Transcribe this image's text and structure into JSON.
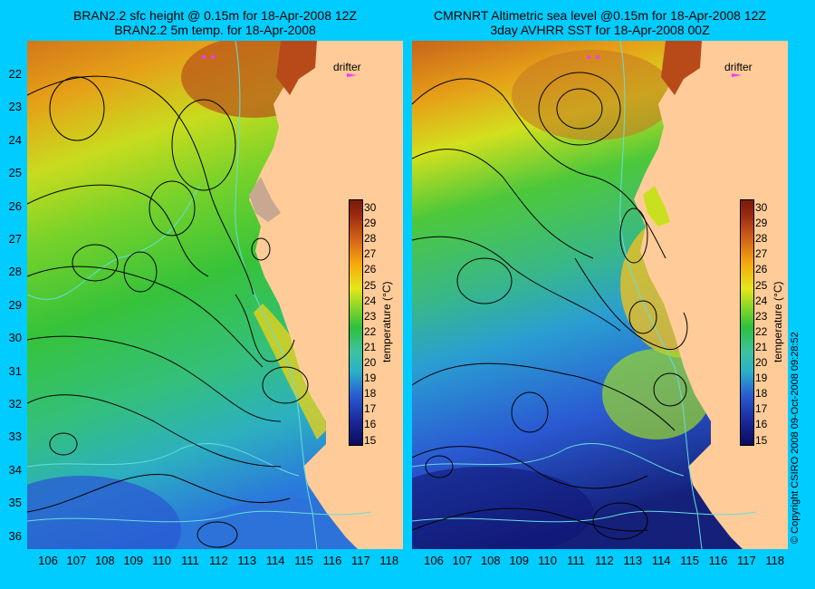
{
  "left_panel": {
    "title_line1": "BRAN2.2 sfc height @ 0.15m for 18-Apr-2008 12Z",
    "title_line2": "BRAN2.2 5m temp. for 18-Apr-2008"
  },
  "right_panel": {
    "title_line1": "CMRNRT Altimetric sea level  @0.15m  for 18-Apr-2008 12Z",
    "title_line2": "3day AVHRR SST for 18-Apr-2008 00Z"
  },
  "latitude_labels": [
    "22",
    "23",
    "24",
    "25",
    "26",
    "27",
    "28",
    "29",
    "30",
    "31",
    "32",
    "33",
    "34",
    "35",
    "36"
  ],
  "longitude_labels": [
    "106",
    "107",
    "108",
    "109",
    "110",
    "111",
    "112",
    "113",
    "114",
    "115",
    "116",
    "117",
    "118"
  ],
  "colorbar": {
    "title": "temperature (°C)",
    "labels": [
      "30",
      "29",
      "28",
      "27",
      "26",
      "25",
      "24",
      "23",
      "22",
      "21",
      "20",
      "19",
      "18",
      "17",
      "16",
      "15"
    ]
  },
  "drifter_label": "drifter",
  "copyright": "© Copyright CSIRO 2008   09-Oct-2008 09:28:52",
  "colors": {
    "background": "#00ccff",
    "land": "#ffcc99",
    "contour": "#000000",
    "bathymetry": "#66dddd",
    "drifter": "#ff33ff"
  }
}
